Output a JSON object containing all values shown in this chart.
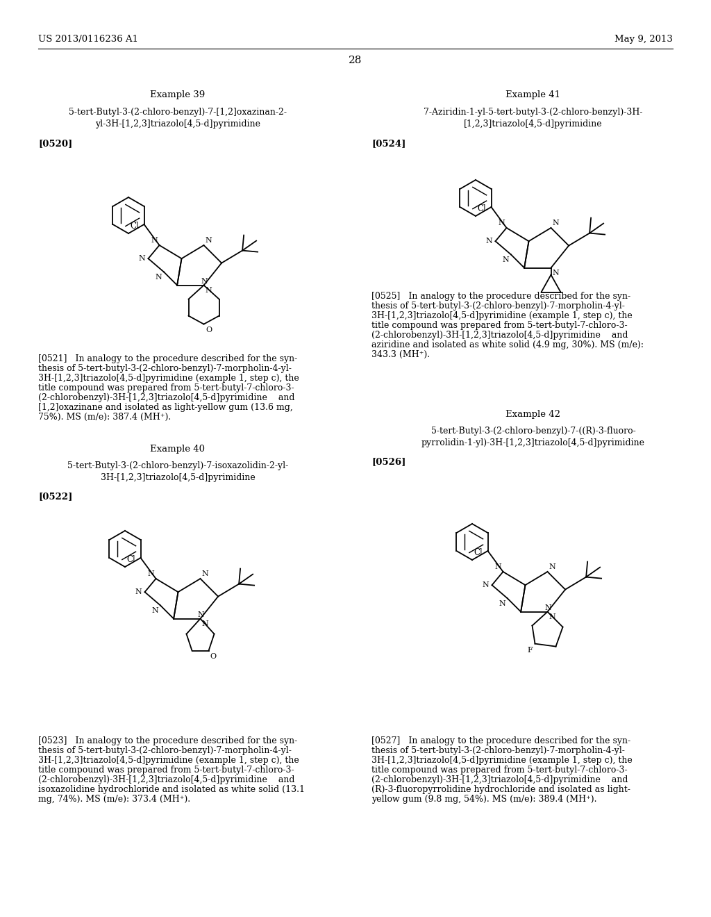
{
  "bg_color": "#ffffff",
  "header_left": "US 2013/0116236 A1",
  "header_right": "May 9, 2013",
  "page_number": "28",
  "example39_title": "Example 39",
  "example39_name_line1": "5-tert-Butyl-3-(2-chloro-benzyl)-7-[1,2]oxazinan-2-",
  "example39_name_line2": "yl-3H-[1,2,3]triazolo[4,5-d]pyrimidine",
  "example39_ref": "[0520]",
  "example39_body_line1": "[0521]   In analogy to the procedure described for the syn-",
  "example39_body_line2": "thesis of 5-tert-butyl-3-(2-chloro-benzyl)-7-morpholin-4-yl-",
  "example39_body_line3": "3H-[1,2,3]triazolo[4,5-d]pyrimidine (example 1, step c), the",
  "example39_body_line4": "title compound was prepared from 5-tert-butyl-7-chloro-3-",
  "example39_body_line5": "(2-chlorobenzyl)-3H-[1,2,3]triazolo[4,5-d]pyrimidine    and",
  "example39_body_line6": "[1,2]oxazinane and isolated as light-yellow gum (13.6 mg,",
  "example39_body_line7": "75%). MS (m/e): 387.4 (MH⁺).",
  "example40_title": "Example 40",
  "example40_name_line1": "5-tert-Butyl-3-(2-chloro-benzyl)-7-isoxazolidin-2-yl-",
  "example40_name_line2": "3H-[1,2,3]triazolo[4,5-d]pyrimidine",
  "example40_ref": "[0522]",
  "example40_body_line1": "[0523]   In analogy to the procedure described for the syn-",
  "example40_body_line2": "thesis of 5-tert-butyl-3-(2-chloro-benzyl)-7-morpholin-4-yl-",
  "example40_body_line3": "3H-[1,2,3]triazolo[4,5-d]pyrimidine (example 1, step c), the",
  "example40_body_line4": "title compound was prepared from 5-tert-butyl-7-chloro-3-",
  "example40_body_line5": "(2-chlorobenzyl)-3H-[1,2,3]triazolo[4,5-d]pyrimidine    and",
  "example40_body_line6": "isoxazolidine hydrochloride and isolated as white solid (13.1",
  "example40_body_line7": "mg, 74%). MS (m/e): 373.4 (MH⁺).",
  "example41_title": "Example 41",
  "example41_name_line1": "7-Aziridin-1-yl-5-tert-butyl-3-(2-chloro-benzyl)-3H-",
  "example41_name_line2": "[1,2,3]triazolo[4,5-d]pyrimidine",
  "example41_ref": "[0524]",
  "example41_body_line1": "[0525]   In analogy to the procedure described for the syn-",
  "example41_body_line2": "thesis of 5-tert-butyl-3-(2-chloro-benzyl)-7-morpholin-4-yl-",
  "example41_body_line3": "3H-[1,2,3]triazolo[4,5-d]pyrimidine (example 1, step c), the",
  "example41_body_line4": "title compound was prepared from 5-tert-butyl-7-chloro-3-",
  "example41_body_line5": "(2-chlorobenzyl)-3H-[1,2,3]triazolo[4,5-d]pyrimidine    and",
  "example41_body_line6": "aziridine and isolated as white solid (4.9 mg, 30%). MS (m/e):",
  "example41_body_line7": "343.3 (MH⁺).",
  "example42_title": "Example 42",
  "example42_name_line1": "5-tert-Butyl-3-(2-chloro-benzyl)-7-((R)-3-fluoro-",
  "example42_name_line2": "pyrrolidin-1-yl)-3H-[1,2,3]triazolo[4,5-d]pyrimidine",
  "example42_ref": "[0526]",
  "example42_body_line1": "[0527]   In analogy to the procedure described for the syn-",
  "example42_body_line2": "thesis of 5-tert-butyl-3-(2-chloro-benzyl)-7-morpholin-4-yl-",
  "example42_body_line3": "3H-[1,2,3]triazolo[4,5-d]pyrimidine (example 1, step c), the",
  "example42_body_line4": "title compound was prepared from 5-tert-butyl-7-chloro-3-",
  "example42_body_line5": "(2-chlorobenzyl)-3H-[1,2,3]triazolo[4,5-d]pyrimidine    and",
  "example42_body_line6": "(R)-3-fluoropyrrolidine hydrochloride and isolated as light-",
  "example42_body_line7": "yellow gum (9.8 mg, 54%). MS (m/e): 389.4 (MH⁺)."
}
